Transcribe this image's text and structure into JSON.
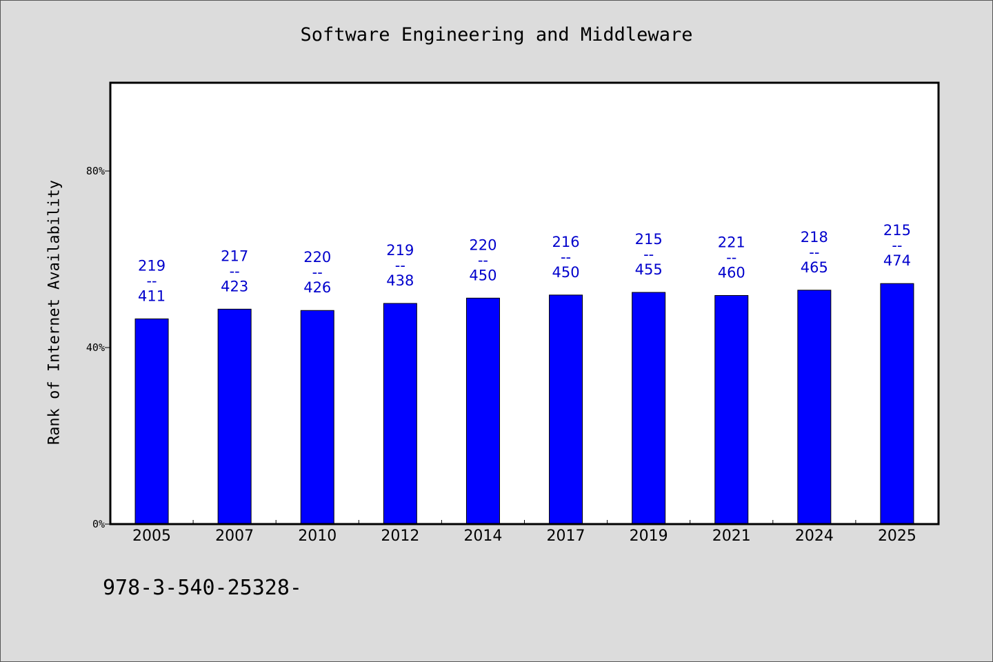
{
  "chart_data": {
    "type": "bar",
    "title": "Software Engineering and Middleware",
    "ylabel": "Rank of Internet Availability",
    "xlabel": "",
    "categories": [
      "2005",
      "2007",
      "2010",
      "2012",
      "2014",
      "2017",
      "2019",
      "2021",
      "2024",
      "2025"
    ],
    "values": [
      46.5,
      48.7,
      48.4,
      50.0,
      51.2,
      51.9,
      52.5,
      51.8,
      53.0,
      54.5
    ],
    "value_unit": "%",
    "data_labels": [
      {
        "top": "219",
        "mid": "--",
        "bottom": "411"
      },
      {
        "top": "217",
        "mid": "--",
        "bottom": "423"
      },
      {
        "top": "220",
        "mid": "--",
        "bottom": "426"
      },
      {
        "top": "219",
        "mid": "--",
        "bottom": "438"
      },
      {
        "top": "220",
        "mid": "--",
        "bottom": "450"
      },
      {
        "top": "216",
        "mid": "--",
        "bottom": "450"
      },
      {
        "top": "215",
        "mid": "--",
        "bottom": "455"
      },
      {
        "top": "221",
        "mid": "--",
        "bottom": "460"
      },
      {
        "top": "218",
        "mid": "--",
        "bottom": "465"
      },
      {
        "top": "215",
        "mid": "--",
        "bottom": "474"
      }
    ],
    "yticks": [
      {
        "value": 0,
        "label": "0%"
      },
      {
        "value": 40,
        "label": "40%"
      },
      {
        "value": 80,
        "label": "80%"
      }
    ],
    "ylim": [
      0,
      100
    ],
    "grid": false,
    "legend": "none"
  },
  "footer_text": "978-3-540-25328-",
  "colors": {
    "background": "#dcdcdc",
    "plot_background": "#ffffff",
    "bar_fill": "#0000ff",
    "data_label": "#0000cc"
  }
}
